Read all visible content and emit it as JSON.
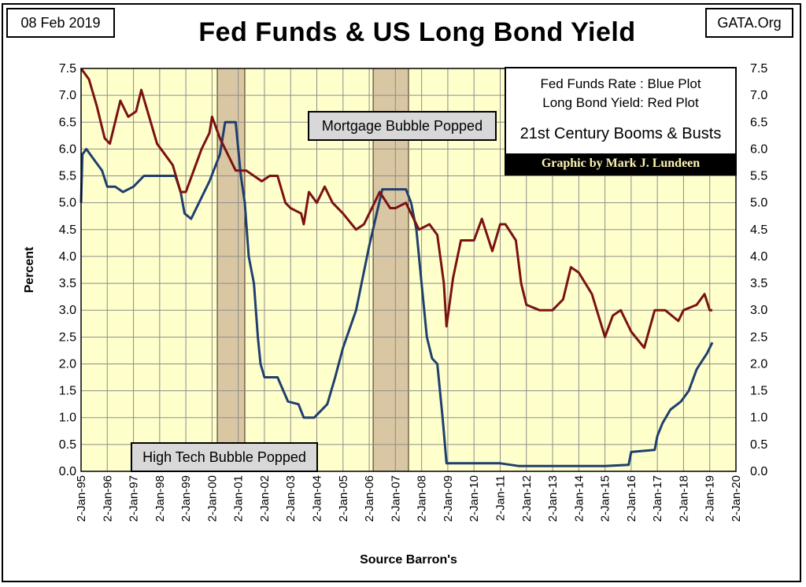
{
  "date_label": "08 Feb 2019",
  "site_label": "GATA.Org",
  "legend": {
    "line1": "Fed Funds Rate : Blue Plot",
    "line2": "Long Bond Yield: Red Plot",
    "subtitle": "21st Century Booms & Busts",
    "credit": "Graphic by Mark J. Lundeen"
  },
  "annotations": {
    "mortgage": "Mortgage Bubble Popped",
    "hightech": "High Tech Bubble Popped"
  },
  "colors": {
    "plot_bg": "#ffffcc",
    "grid": "#8c8c8c",
    "fed_funds": "#1f3f6e",
    "long_bond": "#7a1212",
    "shade": "#d9c7a3"
  },
  "chart_data": {
    "type": "line",
    "title": "Fed Funds & US Long Bond Yield",
    "xlabel": "Source Barron's",
    "ylabel": "Percent",
    "ylim": [
      0,
      7.5
    ],
    "yticks": [
      "0.0",
      "0.5",
      "1.0",
      "1.5",
      "2.0",
      "2.5",
      "3.0",
      "3.5",
      "4.0",
      "4.5",
      "5.0",
      "5.5",
      "6.0",
      "6.5",
      "7.0",
      "7.5"
    ],
    "xlim": [
      1995,
      2020
    ],
    "xticks": [
      "2-Jan-95",
      "2-Jan-96",
      "2-Jan-97",
      "2-Jan-98",
      "2-Jan-99",
      "2-Jan-00",
      "2-Jan-01",
      "2-Jan-02",
      "2-Jan-03",
      "2-Jan-04",
      "2-Jan-05",
      "2-Jan-06",
      "2-Jan-07",
      "2-Jan-08",
      "2-Jan-09",
      "2-Jan-10",
      "2-Jan-11",
      "2-Jan-12",
      "2-Jan-13",
      "2-Jan-14",
      "2-Jan-15",
      "2-Jan-16",
      "2-Jan-17",
      "2-Jan-18",
      "2-Jan-19",
      "2-Jan-20"
    ],
    "grid": true,
    "shaded_periods": [
      [
        2000.2,
        2001.25
      ],
      [
        2006.15,
        2007.5
      ]
    ],
    "series": [
      {
        "name": "Fed Funds Rate",
        "color": "#1f3f6e",
        "x": [
          1995.0,
          1995.05,
          1995.2,
          1995.5,
          1995.8,
          1996.0,
          1996.3,
          1996.6,
          1997.0,
          1997.4,
          1997.8,
          1998.3,
          1998.6,
          1998.8,
          1998.95,
          1999.2,
          1999.5,
          1999.9,
          2000.3,
          2000.5,
          2000.9,
          2001.0,
          2001.1,
          2001.25,
          2001.4,
          2001.6,
          2001.75,
          2001.85,
          2002.0,
          2002.5,
          2002.9,
          2003.3,
          2003.5,
          2003.9,
          2004.4,
          2004.7,
          2005.0,
          2005.5,
          2006.0,
          2006.5,
          2007.0,
          2007.4,
          2007.6,
          2007.8,
          2008.0,
          2008.2,
          2008.4,
          2008.6,
          2008.8,
          2008.95,
          2009.5,
          2010.0,
          2011.0,
          2011.7,
          2012.0,
          2013.0,
          2014.0,
          2015.0,
          2015.9,
          2016.0,
          2016.9,
          2017.0,
          2017.2,
          2017.5,
          2017.9,
          2018.2,
          2018.5,
          2018.9,
          2019.1
        ],
        "y": [
          5.0,
          5.9,
          6.0,
          5.8,
          5.6,
          5.3,
          5.3,
          5.2,
          5.3,
          5.5,
          5.5,
          5.5,
          5.5,
          5.2,
          4.8,
          4.7,
          5.0,
          5.4,
          5.9,
          6.5,
          6.5,
          6.0,
          5.5,
          5.0,
          4.0,
          3.5,
          2.5,
          2.0,
          1.75,
          1.75,
          1.3,
          1.25,
          1.0,
          1.0,
          1.25,
          1.75,
          2.3,
          3.0,
          4.2,
          5.25,
          5.25,
          5.25,
          5.0,
          4.5,
          3.5,
          2.5,
          2.1,
          2.0,
          1.0,
          0.15,
          0.15,
          0.15,
          0.15,
          0.1,
          0.1,
          0.1,
          0.1,
          0.1,
          0.12,
          0.36,
          0.4,
          0.66,
          0.9,
          1.15,
          1.3,
          1.5,
          1.9,
          2.2,
          2.4
        ]
      },
      {
        "name": "Long Bond Yield",
        "color": "#7a1212",
        "x": [
          1995.0,
          1995.3,
          1995.6,
          1995.9,
          1996.1,
          1996.5,
          1996.8,
          1997.1,
          1997.3,
          1997.6,
          1997.9,
          1998.2,
          1998.5,
          1998.8,
          1999.0,
          1999.3,
          1999.6,
          1999.9,
          2000.0,
          2000.3,
          2000.6,
          2000.9,
          2001.3,
          2001.6,
          2001.9,
          2002.2,
          2002.5,
          2002.8,
          2003.0,
          2003.4,
          2003.5,
          2003.7,
          2004.0,
          2004.3,
          2004.6,
          2005.0,
          2005.5,
          2005.8,
          2006.0,
          2006.4,
          2006.8,
          2007.0,
          2007.4,
          2007.6,
          2007.9,
          2008.3,
          2008.6,
          2008.85,
          2008.95,
          2009.2,
          2009.5,
          2010.0,
          2010.3,
          2010.7,
          2011.0,
          2011.2,
          2011.6,
          2011.8,
          2012.0,
          2012.5,
          2013.0,
          2013.4,
          2013.7,
          2014.0,
          2014.5,
          2015.0,
          2015.3,
          2015.6,
          2016.0,
          2016.5,
          2016.9,
          2017.3,
          2017.8,
          2018.0,
          2018.5,
          2018.8,
          2019.0,
          2019.1
        ],
        "y": [
          7.5,
          7.3,
          6.8,
          6.2,
          6.1,
          6.9,
          6.6,
          6.7,
          7.1,
          6.6,
          6.1,
          5.9,
          5.7,
          5.2,
          5.2,
          5.6,
          6.0,
          6.3,
          6.6,
          6.2,
          5.9,
          5.6,
          5.6,
          5.5,
          5.4,
          5.5,
          5.5,
          5.0,
          4.9,
          4.8,
          4.6,
          5.2,
          5.0,
          5.3,
          5.0,
          4.8,
          4.5,
          4.6,
          4.8,
          5.2,
          4.9,
          4.9,
          5.0,
          4.8,
          4.5,
          4.6,
          4.4,
          3.5,
          2.7,
          3.6,
          4.3,
          4.3,
          4.7,
          4.1,
          4.6,
          4.6,
          4.3,
          3.5,
          3.1,
          3.0,
          3.0,
          3.2,
          3.8,
          3.7,
          3.3,
          2.5,
          2.9,
          3.0,
          2.6,
          2.3,
          3.0,
          3.0,
          2.8,
          3.0,
          3.1,
          3.3,
          3.0,
          3.0
        ]
      }
    ]
  }
}
